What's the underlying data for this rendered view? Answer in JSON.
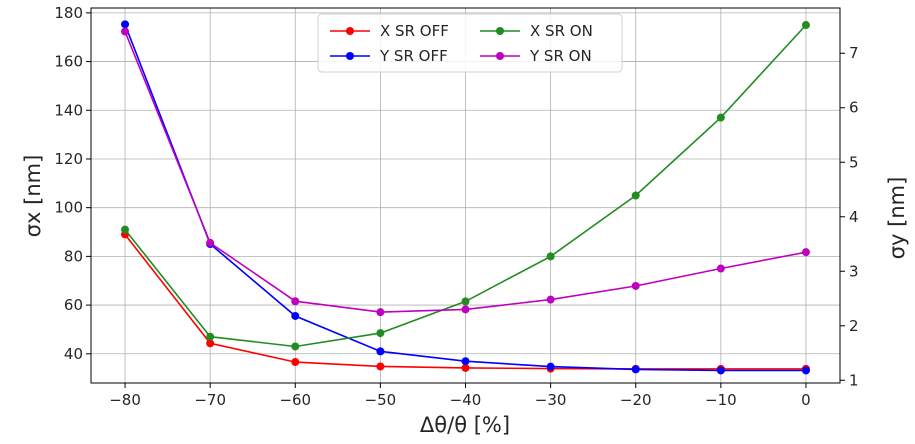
{
  "chart_data": {
    "type": "line",
    "xlabel": "Δθ/θ [%]",
    "ylabel_left": "σx [nm]",
    "ylabel_right": "σy [nm]",
    "xlim": [
      -84,
      4
    ],
    "ylim_left": [
      28,
      182
    ],
    "ylim_right": [
      0.95,
      7.83
    ],
    "x_ticks": [
      -80,
      -70,
      -60,
      -50,
      -40,
      -30,
      -20,
      -10,
      0
    ],
    "x_tick_labels": [
      "−80",
      "−70",
      "−60",
      "−50",
      "−40",
      "−30",
      "−20",
      "−10",
      "0"
    ],
    "y_left_ticks": [
      40,
      60,
      80,
      100,
      120,
      140,
      160,
      180
    ],
    "y_left_tick_labels": [
      "40",
      "60",
      "80",
      "100",
      "120",
      "140",
      "160",
      "180"
    ],
    "y_right_ticks": [
      1,
      2,
      3,
      4,
      5,
      6,
      7
    ],
    "y_right_tick_labels": [
      "1",
      "2",
      "3",
      "4",
      "5",
      "6",
      "7"
    ],
    "grid": true,
    "legend_position": "top-center",
    "x": [
      -80,
      -70,
      -60,
      -50,
      -40,
      -30,
      -20,
      -10,
      0
    ],
    "series": [
      {
        "name": "X SR OFF",
        "axis": "left",
        "color": "#ff0000",
        "values": [
          89,
          44.3,
          36.6,
          34.8,
          34.2,
          33.9,
          33.8,
          33.8,
          33.8
        ]
      },
      {
        "name": "Y SR OFF",
        "axis": "right",
        "color": "#0000ff",
        "values": [
          7.53,
          3.5,
          2.18,
          1.53,
          1.35,
          1.25,
          1.2,
          1.18,
          1.18
        ]
      },
      {
        "name": "X SR ON",
        "axis": "left",
        "color": "#228b22",
        "values": [
          91,
          47,
          43,
          48.5,
          61.5,
          80,
          105,
          137,
          175
        ]
      },
      {
        "name": "Y SR ON",
        "axis": "right",
        "color": "#bf00bf",
        "values": [
          7.4,
          3.52,
          2.45,
          2.25,
          2.3,
          2.48,
          2.73,
          3.05,
          3.35
        ]
      }
    ]
  }
}
